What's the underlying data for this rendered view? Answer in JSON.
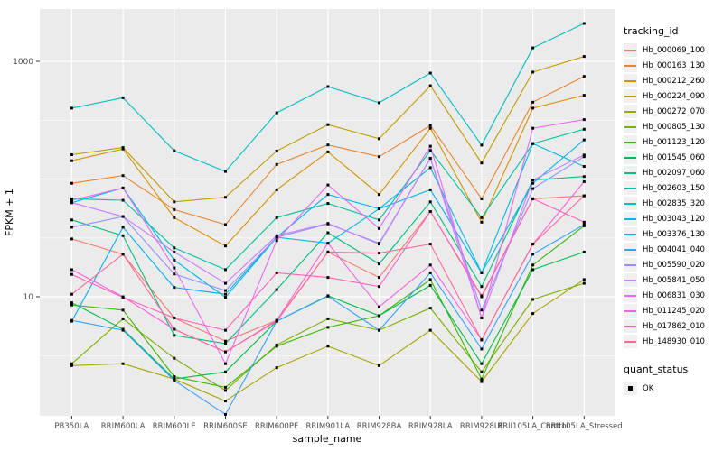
{
  "chart_data": {
    "type": "line",
    "xlabel": "sample_name",
    "ylabel": "FPKM + 1",
    "scale": "log10",
    "grid": "on",
    "legend_position": "right",
    "panel_color": "#EBEBEB",
    "grid_color": "#FFFFFF",
    "tick_text_color": "#4D4D4D",
    "point_color": "#000000",
    "categories": [
      "PB350LA",
      "RRIM600LA",
      "RRIM600LE",
      "RRIM600SE",
      "RRIM600PE",
      "RRIM901LA",
      "RRIM928BA",
      "RRIM928LA",
      "RRIM928LE",
      "RRII105LA_Control",
      "RRII105LA_Stressed"
    ],
    "y_ticks": [
      {
        "label": "1000",
        "value": 1000
      },
      {
        "label": "10",
        "value": 10
      }
    ],
    "y_minor": [
      3.16,
      31.6,
      316
    ],
    "y_major_unlabeled": [
      100
    ],
    "ylim": [
      0.97,
      2800
    ],
    "series": [
      {
        "name": "Hb_000069_100",
        "color": "#F8766D",
        "values": [
          31,
          23,
          6.6,
          4.2,
          6.3,
          24,
          14.6,
          53,
          10.2,
          68,
          72
        ]
      },
      {
        "name": "Hb_000163_130",
        "color": "#EA8331",
        "values": [
          92,
          107,
          55,
          41,
          133,
          195,
          155,
          285,
          68,
          450,
          745
        ]
      },
      {
        "name": "Hb_000212_260",
        "color": "#D89000",
        "values": [
          143,
          180,
          47,
          27,
          81,
          170,
          74,
          270,
          43,
          400,
          515
        ]
      },
      {
        "name": "Hb_000224_090",
        "color": "#C09B00",
        "values": [
          161,
          185,
          64,
          70,
          173,
          290,
          220,
          620,
          137,
          810,
          1100
        ]
      },
      {
        "name": "Hb_000272_070",
        "color": "#A3A500",
        "values": [
          2.6,
          2.7,
          2.0,
          1.3,
          2.5,
          3.8,
          2.6,
          5.2,
          1.9,
          7.2,
          14
        ]
      },
      {
        "name": "Hb_000805_130",
        "color": "#7CAE00",
        "values": [
          2.7,
          6.5,
          3.0,
          1.6,
          3.9,
          6.5,
          5.2,
          8.0,
          2.3,
          9.5,
          13
        ]
      },
      {
        "name": "Hb_001123_120",
        "color": "#39B600",
        "values": [
          8.5,
          7.7,
          2.1,
          1.7,
          3.8,
          5.5,
          6.9,
          14,
          2.0,
          18.6,
          40
        ]
      },
      {
        "name": "Hb_001545_060",
        "color": "#00BB4E",
        "values": [
          8.9,
          5.3,
          2.0,
          2.3,
          6.2,
          10.2,
          6.9,
          12.5,
          2.7,
          17,
          24
        ]
      },
      {
        "name": "Hb_002097_060",
        "color": "#00BF7D",
        "values": [
          45,
          33,
          4.7,
          4.0,
          11.5,
          35,
          19,
          64,
          12.2,
          98,
          105
        ]
      },
      {
        "name": "Hb_002603_150",
        "color": "#00C1A3",
        "values": [
          68,
          66,
          26,
          17,
          47,
          62,
          45,
          175,
          47,
          200,
          265
        ]
      },
      {
        "name": "Hb_002835_320",
        "color": "#00BFC4",
        "values": [
          400,
          490,
          174,
          116,
          365,
          610,
          445,
          795,
          194,
          1300,
          2100
        ]
      },
      {
        "name": "Hb_003043_120",
        "color": "#00BAE0",
        "values": [
          63,
          84,
          20.5,
          9.9,
          32,
          28.5,
          56,
          125,
          16,
          200,
          128
        ]
      },
      {
        "name": "Hb_003376_130",
        "color": "#00B0F6",
        "values": [
          6.2,
          39,
          12,
          10.5,
          32,
          74,
          56,
          81,
          16,
          92,
          215
        ]
      },
      {
        "name": "Hb_004041_040",
        "color": "#35A2FF",
        "values": [
          6.3,
          5.2,
          1.95,
          1.0,
          6.2,
          10.1,
          5.2,
          16,
          3.6,
          23,
          41
        ]
      },
      {
        "name": "Hb_005590_020",
        "color": "#9590FF",
        "values": [
          39,
          48,
          15.6,
          11.3,
          32,
          41.5,
          28.5,
          150,
          7.7,
          83,
          155
        ]
      },
      {
        "name": "Hb_005841_050",
        "color": "#C77CFF",
        "values": [
          63,
          48,
          24,
          13,
          33,
          42,
          28,
          150,
          6.6,
          98,
          160
        ]
      },
      {
        "name": "Hb_006831_030",
        "color": "#E76BF3",
        "values": [
          66,
          84,
          17.6,
          2.7,
          30,
          89,
          38,
          190,
          6.6,
          270,
          320
        ]
      },
      {
        "name": "Hb_011245_020",
        "color": "#FA62DB",
        "values": [
          17,
          10,
          5.3,
          3.4,
          6.3,
          28.5,
          8.2,
          18.6,
          4.3,
          28,
          95
        ]
      },
      {
        "name": "Hb_017862_010",
        "color": "#FF62BC",
        "values": [
          15.5,
          9.9,
          6.6,
          5.2,
          16,
          14.6,
          12.2,
          53,
          10,
          68,
          43
        ]
      },
      {
        "name": "Hb_148930_010",
        "color": "#FF6A98",
        "values": [
          10.5,
          23,
          5.3,
          3.4,
          6.2,
          24,
          23.5,
          28,
          4.3,
          28,
          72
        ]
      }
    ]
  },
  "legend": {
    "tracking_title": "tracking_id",
    "quant_title": "quant_status",
    "quant_items": [
      {
        "label": "OK"
      }
    ]
  }
}
